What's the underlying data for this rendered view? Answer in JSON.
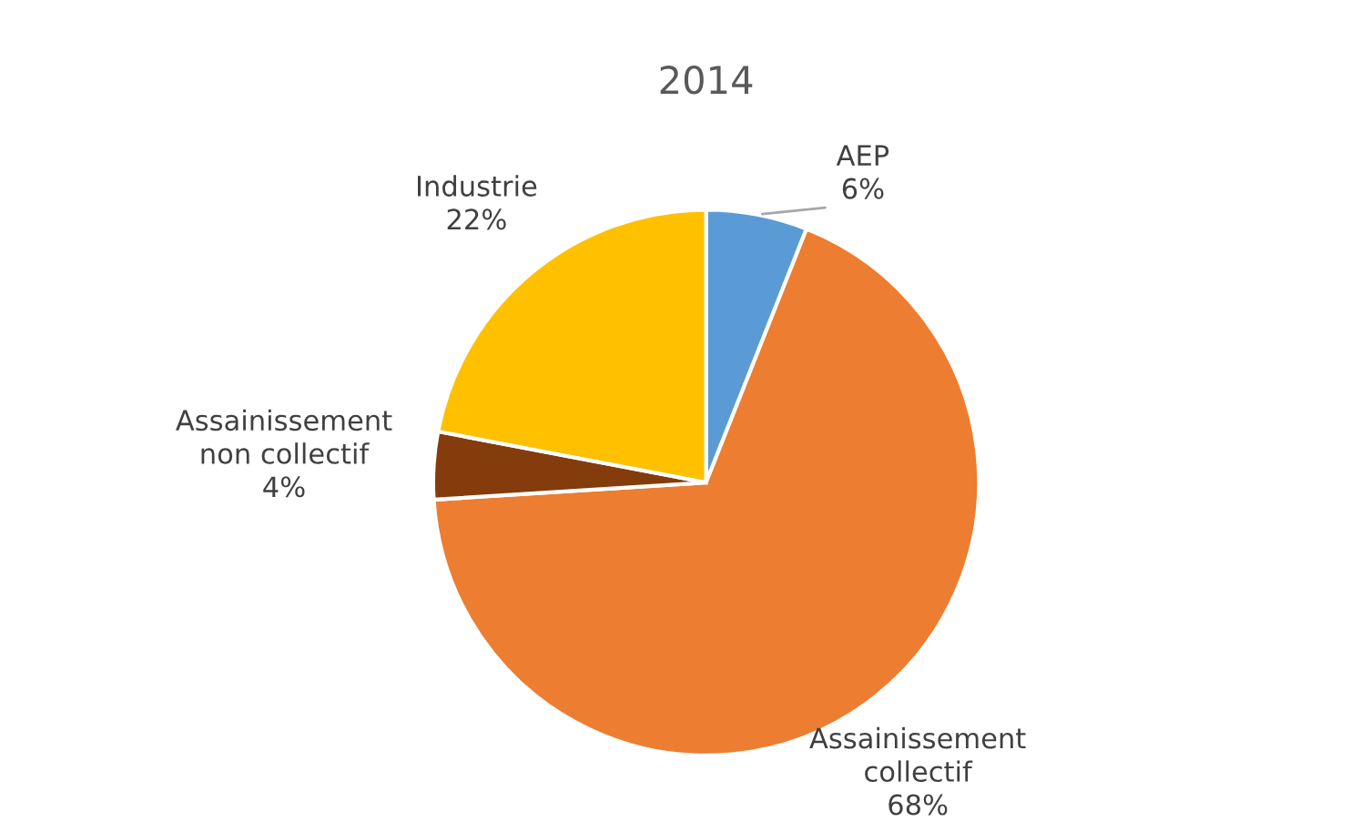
{
  "chart_data": {
    "type": "pie",
    "title": "2014",
    "categories": [
      "AEP",
      "Assainissement\ncollectif",
      "Assainissement\nnon collectif",
      "Industrie"
    ],
    "values": [
      6,
      68,
      4,
      22
    ],
    "value_labels": [
      "6%",
      "68%",
      "4%",
      "22%"
    ],
    "colors": [
      "#5b9bd5",
      "#ed7d31",
      "#843c0c",
      "#ffc000"
    ]
  }
}
